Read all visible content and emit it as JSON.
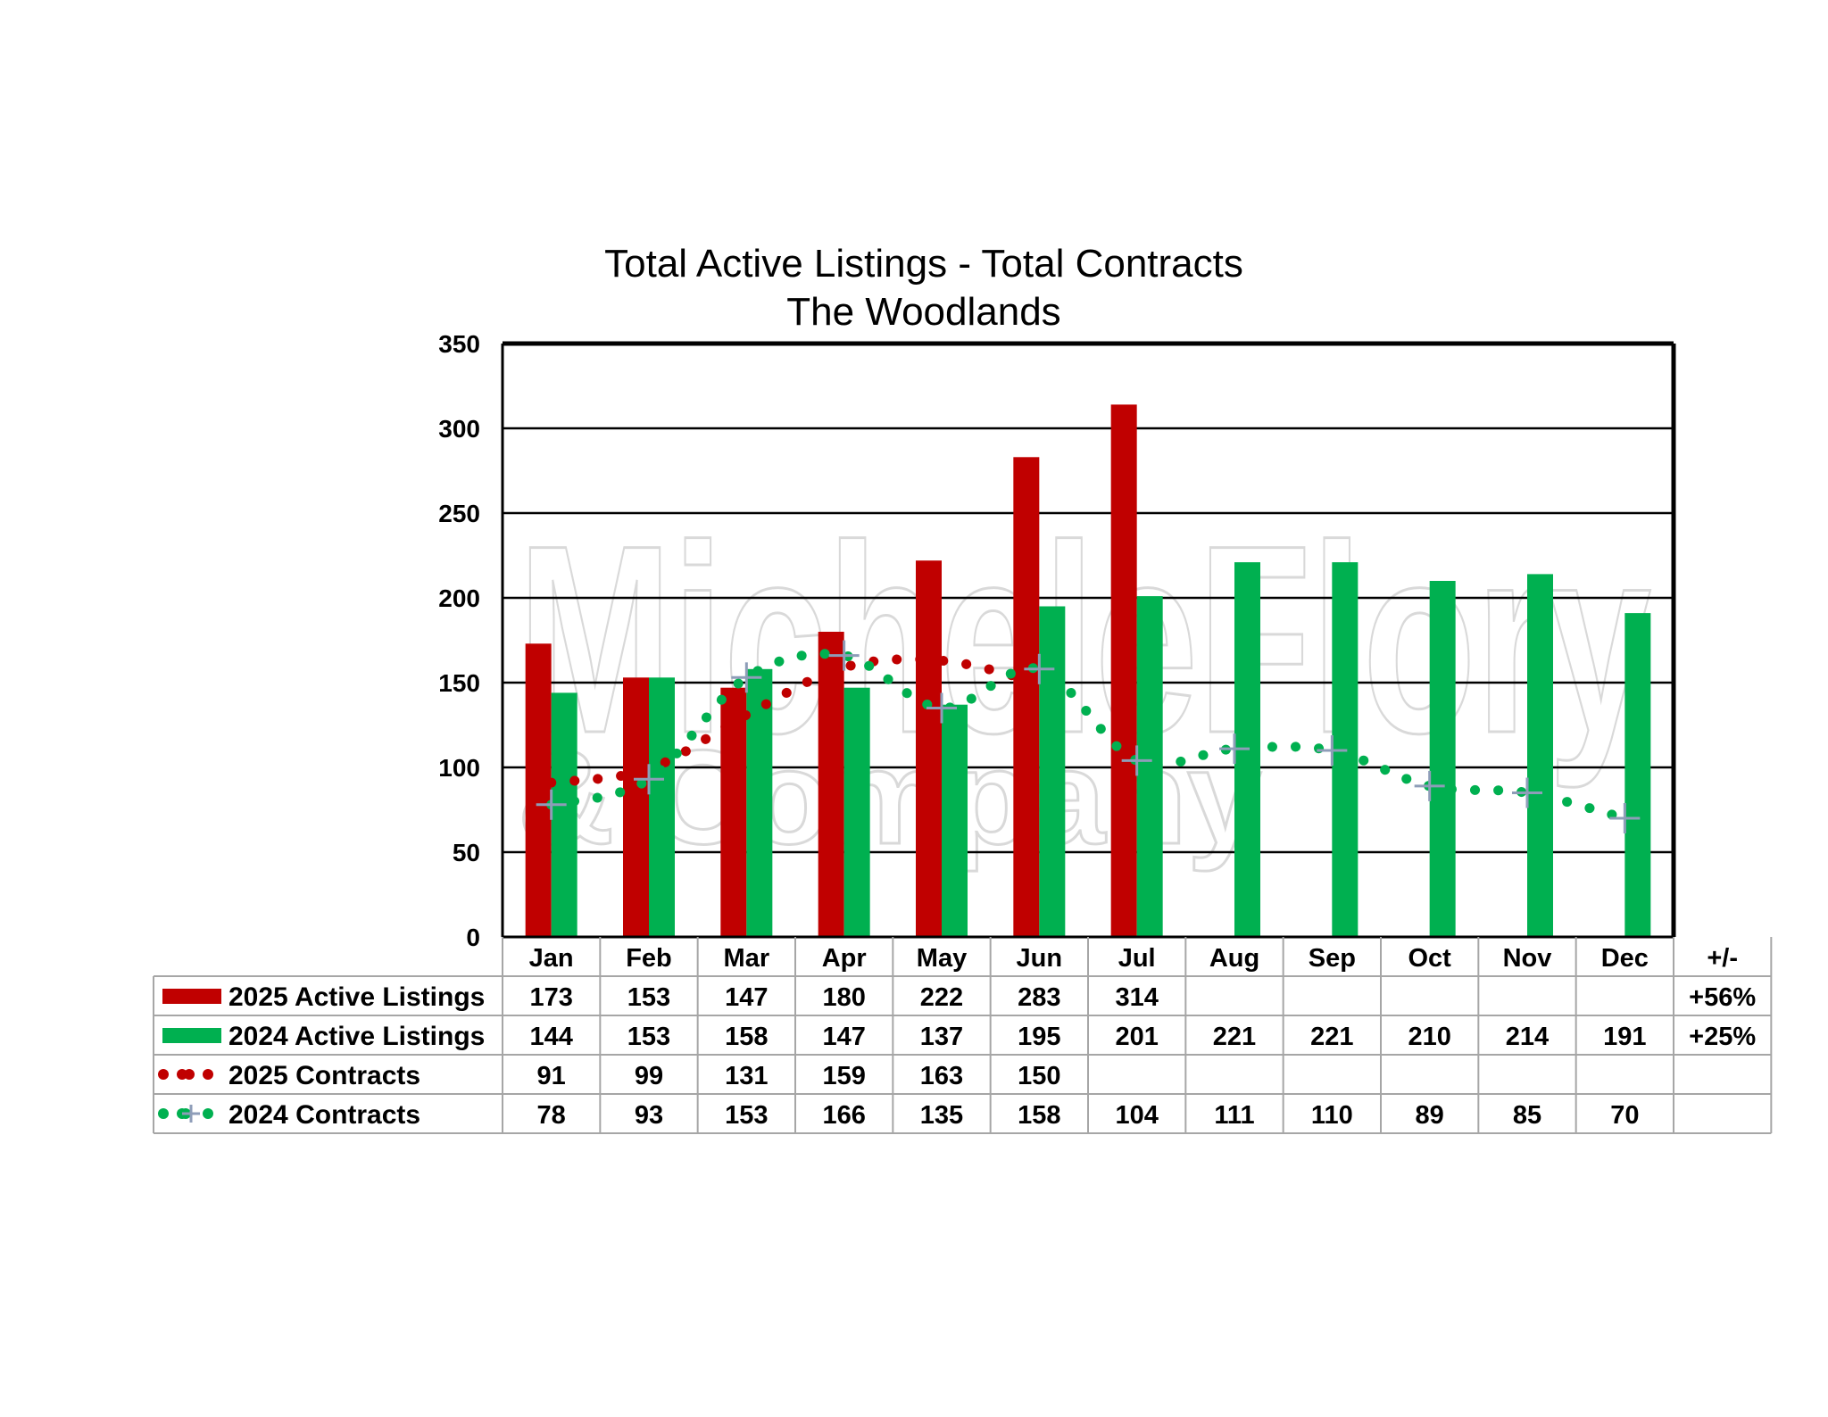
{
  "chart_data": {
    "type": "bar",
    "title": "Total Active Listings - Total Contracts",
    "subtitle": "The Woodlands",
    "watermark": "MicheleFlory & Company",
    "categories": [
      "Jan",
      "Feb",
      "Mar",
      "Apr",
      "May",
      "Jun",
      "Jul",
      "Aug",
      "Sep",
      "Oct",
      "Nov",
      "Dec"
    ],
    "change_header": "+/-",
    "ylim": [
      0,
      350
    ],
    "yticks": [
      0,
      50,
      100,
      150,
      200,
      250,
      300,
      350
    ],
    "grid": true,
    "series": [
      {
        "name": "2025 Active Listings",
        "kind": "bar",
        "color": "#c00000",
        "values": [
          173,
          153,
          147,
          180,
          222,
          283,
          314,
          null,
          null,
          null,
          null,
          null
        ],
        "change": "+56%"
      },
      {
        "name": "2024 Active Listings",
        "kind": "bar",
        "color": "#00b050",
        "values": [
          144,
          153,
          158,
          147,
          137,
          195,
          201,
          221,
          221,
          210,
          214,
          191
        ],
        "change": "+25%"
      },
      {
        "name": "2025 Contracts",
        "kind": "line",
        "color": "#c00000",
        "values": [
          91,
          99,
          131,
          159,
          163,
          150,
          null,
          null,
          null,
          null,
          null,
          null
        ],
        "change": ""
      },
      {
        "name": "2024 Contracts",
        "kind": "line",
        "color": "#00b050",
        "values": [
          78,
          93,
          153,
          166,
          135,
          158,
          104,
          111,
          110,
          89,
          85,
          70
        ],
        "change": ""
      }
    ]
  }
}
